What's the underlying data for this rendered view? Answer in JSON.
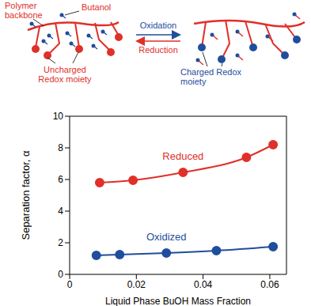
{
  "diagram": {
    "labels": {
      "polymer_backbone": [
        "Polymer",
        "backbone"
      ],
      "butanol": "Butanol",
      "oxidation": "Oxidation",
      "reduction": "Reduction",
      "uncharged": [
        "Uncharged",
        "Redox moiety"
      ],
      "charged": [
        "Charged Redox",
        "moiety"
      ]
    }
  },
  "chart_data": {
    "type": "line",
    "xlabel": "Liquid Phase BuOH Mass Fraction",
    "ylabel": "Separation factor, α",
    "xlim": [
      0,
      0.065
    ],
    "xticks": [
      0,
      0.02,
      0.04,
      0.06
    ],
    "ylim": [
      0,
      10
    ],
    "yticks": [
      0,
      2,
      4,
      6,
      8,
      10
    ],
    "series": [
      {
        "name": "Reduced",
        "color": "#e0302a",
        "marker": "circle",
        "x": [
          0.009,
          0.019,
          0.034,
          0.053,
          0.061
        ],
        "values": [
          5.8,
          5.95,
          6.45,
          7.4,
          8.2
        ]
      },
      {
        "name": "Oxidized",
        "color": "#1f4e9c",
        "marker": "circle",
        "x": [
          0.008,
          0.015,
          0.029,
          0.044,
          0.061
        ],
        "values": [
          1.2,
          1.25,
          1.35,
          1.5,
          1.75
        ]
      }
    ]
  }
}
